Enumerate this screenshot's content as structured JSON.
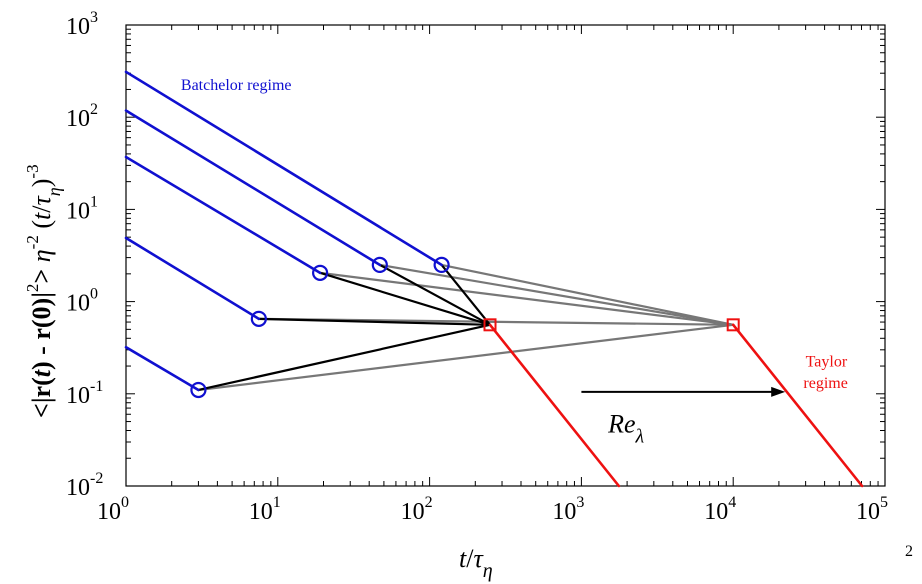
{
  "chart_data": {
    "type": "line",
    "xscale": "log",
    "yscale": "log",
    "xlim": [
      1,
      100000
    ],
    "ylim": [
      0.01,
      1000
    ],
    "xticks": [
      1,
      10,
      100,
      1000,
      10000,
      100000
    ],
    "yticks": [
      0.01,
      0.1,
      1,
      10,
      100,
      1000
    ],
    "xtick_labels": [
      {
        "base": "10",
        "exp": "0"
      },
      {
        "base": "10",
        "exp": "1"
      },
      {
        "base": "10",
        "exp": "2"
      },
      {
        "base": "10",
        "exp": "3"
      },
      {
        "base": "10",
        "exp": "4"
      },
      {
        "base": "10",
        "exp": "5"
      }
    ],
    "ytick_labels": [
      {
        "base": "10",
        "exp": "-2"
      },
      {
        "base": "10",
        "exp": "-1"
      },
      {
        "base": "10",
        "exp": "0"
      },
      {
        "base": "10",
        "exp": "1"
      },
      {
        "base": "10",
        "exp": "2"
      },
      {
        "base": "10",
        "exp": "3"
      }
    ],
    "xlabel": {
      "t": "t",
      "slash": "/",
      "tau": "τ",
      "sub": "η"
    },
    "ylabel": {
      "open": "<|",
      "r1": "r",
      "t1": "(",
      "t2": "t",
      "t3": ")",
      "minus": " - ",
      "r2": "r",
      "zero": "(0)|",
      "sq": "2",
      "close": "> ",
      "eta": "η",
      "eta_exp": "-2",
      "paren": " (",
      "tt": "t",
      "slash": "/",
      "tau": "τ",
      "tau_sub": "η",
      "rparen": ")",
      "pow": "-3"
    },
    "grid": false,
    "colors": {
      "batchelor": "#1010d0",
      "taylor": "#ee1111",
      "connector_gray": "#777777",
      "connector_black": "#000000",
      "arrow": "#000000"
    },
    "batchelor_lines": [
      {
        "x": [
          1,
          120
        ],
        "y": [
          310,
          2.5
        ]
      },
      {
        "x": [
          1,
          47
        ],
        "y": [
          118,
          2.5
        ]
      },
      {
        "x": [
          1,
          19
        ],
        "y": [
          37,
          2.05
        ]
      },
      {
        "x": [
          1,
          7.5
        ],
        "y": [
          4.9,
          0.65
        ]
      },
      {
        "x": [
          1,
          3
        ],
        "y": [
          0.32,
          0.11
        ]
      }
    ],
    "circle_markers": [
      {
        "x": 120,
        "y": 2.5
      },
      {
        "x": 47,
        "y": 2.5
      },
      {
        "x": 19,
        "y": 2.05
      },
      {
        "x": 7.5,
        "y": 0.65
      },
      {
        "x": 3,
        "y": 0.11
      }
    ],
    "square_markers": [
      {
        "x": 250,
        "y": 0.56
      },
      {
        "x": 10000,
        "y": 0.56
      }
    ],
    "taylor_lines": [
      {
        "x": [
          250,
          1900
        ],
        "y": [
          0.56,
          0.0086
        ]
      },
      {
        "x": [
          10000,
          76000
        ],
        "y": [
          0.56,
          0.0086
        ]
      }
    ],
    "black_connectors": [
      {
        "x": [
          120,
          250
        ],
        "y": [
          2.5,
          0.56
        ]
      },
      {
        "x": [
          47,
          250
        ],
        "y": [
          2.5,
          0.56
        ]
      },
      {
        "x": [
          19,
          250
        ],
        "y": [
          2.05,
          0.56
        ]
      },
      {
        "x": [
          7.5,
          250
        ],
        "y": [
          0.65,
          0.56
        ]
      },
      {
        "x": [
          3,
          250
        ],
        "y": [
          0.11,
          0.56
        ]
      }
    ],
    "gray_connectors": [
      {
        "x": [
          120,
          10000
        ],
        "y": [
          2.5,
          0.56
        ]
      },
      {
        "x": [
          47,
          10000
        ],
        "y": [
          2.5,
          0.56
        ]
      },
      {
        "x": [
          19,
          10000
        ],
        "y": [
          2.05,
          0.56
        ]
      },
      {
        "x": [
          7.5,
          10000
        ],
        "y": [
          0.65,
          0.56
        ]
      },
      {
        "x": [
          3,
          10000
        ],
        "y": [
          0.11,
          0.56
        ]
      }
    ],
    "arrow": {
      "x": [
        1000,
        22000
      ],
      "y": [
        0.105,
        0.105
      ],
      "label_main": "Re",
      "label_sub": "λ",
      "label_x": 1500,
      "label_y": 0.04
    },
    "annotations": {
      "batchelor": {
        "text": "Batchelor regime",
        "x": 2.3,
        "y": 230
      },
      "taylor_line1": {
        "text": "Taylor",
        "x": 30000,
        "y": 0.23
      },
      "taylor_line2": {
        "text": "regime",
        "x": 29000,
        "y": 0.135
      }
    },
    "corner_superscript": "2"
  }
}
